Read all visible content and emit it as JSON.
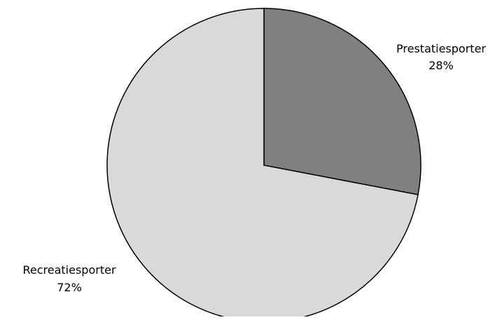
{
  "chart_data": {
    "type": "pie",
    "title": "",
    "slices": [
      {
        "label": "Prestatiesporter",
        "value": 28,
        "value_label": "28%",
        "color": "#808080"
      },
      {
        "label": "Recreatiesporter",
        "value": 72,
        "value_label": "72%",
        "color": "#d9d9d9"
      }
    ],
    "start_angle": "12 o'clock",
    "direction": "clockwise",
    "edge_color": "#000000",
    "legend": "none"
  }
}
